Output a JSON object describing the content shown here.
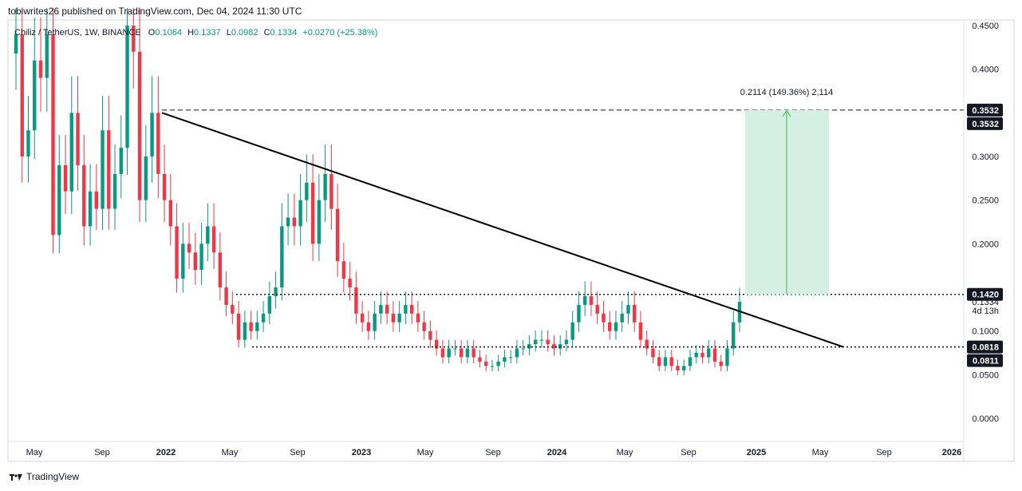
{
  "header": {
    "publisher": "tobiwrites26 published on TradingView.com, Dec 04, 2024 11:30 UTC"
  },
  "legend": {
    "symbol": "Chiliz / TetherUS, 1W, BINANCE",
    "open_label": "O",
    "open": "0.1064",
    "high_label": "H",
    "high": "0.1337",
    "low_label": "L",
    "low": "0.0982",
    "close_label": "C",
    "close": "0.1334",
    "change": "+0.0270 (+25.38%)"
  },
  "footer": {
    "brand": "TradingView"
  },
  "colors": {
    "up": "#089981",
    "down": "#f23645",
    "target_fill": "#d4f0e4",
    "target_line": "#4caf50",
    "price_badge": "#131722"
  },
  "chart_data": {
    "type": "candlestick",
    "title": "Chiliz / TetherUS, 1W, BINANCE",
    "y_axis": {
      "min": 0,
      "max": 0.45,
      "scale": "linear",
      "position": "right",
      "ticks": [
        "0.4500",
        "0.4000",
        "0.3000",
        "0.2500",
        "0.2000",
        "0.1000",
        "0.0500",
        "0.0000"
      ]
    },
    "x_axis": {
      "ticks": [
        "May",
        "Sep",
        "2022",
        "May",
        "Sep",
        "2023",
        "May",
        "Sep",
        "2024",
        "May",
        "Sep",
        "2025",
        "May",
        "Sep",
        "2026"
      ]
    },
    "price_labels": [
      {
        "text": "0.3532",
        "value": 0.3532,
        "style": "badge"
      },
      {
        "text": "0.3532",
        "value": 0.3532,
        "style": "badge"
      },
      {
        "text": "0.1420",
        "value": 0.142,
        "style": "badge"
      },
      {
        "text": "0.1334",
        "value": 0.1334,
        "style": "plain"
      },
      {
        "text": "4d 13h",
        "value": 0.1234,
        "style": "plain"
      },
      {
        "text": "0.0818",
        "value": 0.0818,
        "style": "badge"
      },
      {
        "text": "0.0811",
        "value": 0.0811,
        "style": "badge"
      }
    ],
    "annotations": {
      "target_label": "0.2114 (149.36%) 2,114",
      "target_range": [
        0.142,
        0.3532
      ],
      "resistance_level": 0.3532,
      "range_top": 0.142,
      "range_bottom": 0.0818,
      "trendline": {
        "from": [
          "2021-11",
          0.35
        ],
        "to": [
          "2025-06",
          0.0818
        ]
      }
    },
    "candles_weekly_close": [
      0.44,
      0.3,
      0.33,
      0.41,
      0.39,
      0.44,
      0.21,
      0.29,
      0.26,
      0.35,
      0.29,
      0.22,
      0.26,
      0.24,
      0.33,
      0.24,
      0.28,
      0.31,
      0.45,
      0.42,
      0.25,
      0.3,
      0.35,
      0.28,
      0.25,
      0.22,
      0.16,
      0.2,
      0.19,
      0.17,
      0.2,
      0.22,
      0.19,
      0.15,
      0.13,
      0.12,
      0.09,
      0.11,
      0.1,
      0.11,
      0.12,
      0.14,
      0.15,
      0.22,
      0.23,
      0.22,
      0.25,
      0.27,
      0.2,
      0.25,
      0.28,
      0.24,
      0.18,
      0.16,
      0.15,
      0.12,
      0.11,
      0.1,
      0.12,
      0.13,
      0.12,
      0.11,
      0.12,
      0.13,
      0.12,
      0.11,
      0.1,
      0.09,
      0.08,
      0.07,
      0.08,
      0.08,
      0.07,
      0.08,
      0.07,
      0.065,
      0.06,
      0.06,
      0.065,
      0.07,
      0.07,
      0.08,
      0.08,
      0.085,
      0.09,
      0.09,
      0.085,
      0.08,
      0.085,
      0.09,
      0.11,
      0.13,
      0.14,
      0.13,
      0.12,
      0.11,
      0.1,
      0.11,
      0.12,
      0.13,
      0.11,
      0.09,
      0.08,
      0.07,
      0.06,
      0.07,
      0.06,
      0.055,
      0.06,
      0.07,
      0.075,
      0.07,
      0.08,
      0.065,
      0.06,
      0.08,
      0.11,
      0.1334
    ]
  }
}
